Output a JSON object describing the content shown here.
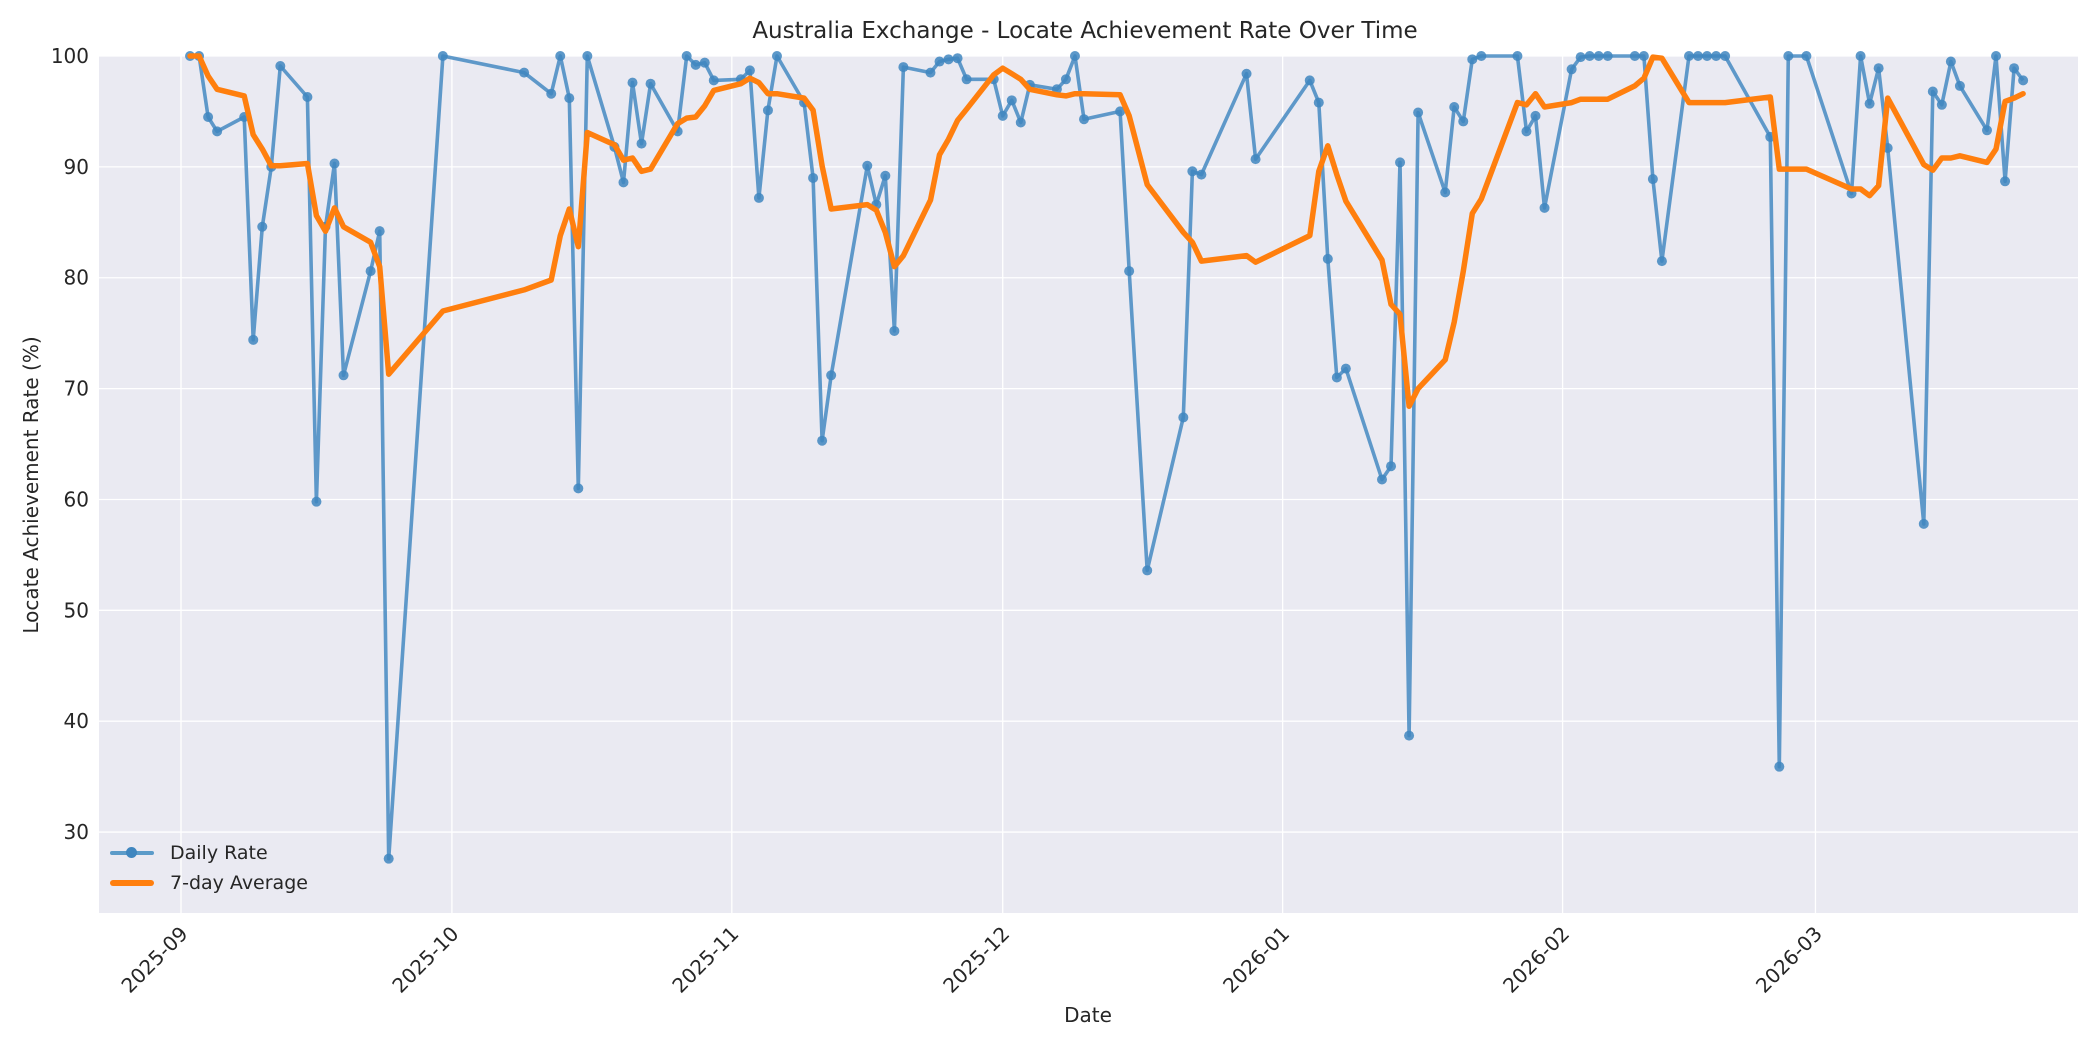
{
  "chart_data": {
    "type": "line",
    "title": "Australia Exchange - Locate Achievement Rate Over Time",
    "xlabel": "Date",
    "ylabel": "Locate Achievement Rate (%)",
    "ylim": [
      22.7,
      100
    ],
    "yticks": [
      30,
      40,
      50,
      60,
      70,
      80,
      90,
      100
    ],
    "xticks": [
      {
        "label": "2025-09",
        "day": 0
      },
      {
        "label": "2025-10",
        "day": 30
      },
      {
        "label": "2025-11",
        "day": 61
      },
      {
        "label": "2025-12",
        "day": 91
      },
      {
        "label": "2026-01",
        "day": 122
      },
      {
        "label": "2026-02",
        "day": 153
      },
      {
        "label": "2026-03",
        "day": 181
      }
    ],
    "x_origin_date": "2025-09-01",
    "xlim_days": [
      -9,
      216
    ],
    "grid": true,
    "legend_position": "lower left",
    "series": [
      {
        "name": "Daily Rate",
        "color": "#4a90c4",
        "marker": "circle",
        "points": [
          [
            1,
            100.0
          ],
          [
            2,
            100.0
          ],
          [
            3,
            94.5
          ],
          [
            4,
            93.2
          ],
          [
            7,
            94.5
          ],
          [
            8,
            74.4
          ],
          [
            9,
            84.6
          ],
          [
            10,
            90.0
          ],
          [
            11,
            99.1
          ],
          [
            14,
            96.3
          ],
          [
            15,
            59.8
          ],
          [
            16,
            84.6
          ],
          [
            17,
            90.3
          ],
          [
            18,
            71.2
          ],
          [
            21,
            80.6
          ],
          [
            22,
            84.2
          ],
          [
            23,
            27.6
          ],
          [
            29,
            100.0
          ],
          [
            38,
            98.5
          ],
          [
            41,
            96.6
          ],
          [
            42,
            100.0
          ],
          [
            43,
            96.2
          ],
          [
            44,
            61.0
          ],
          [
            45,
            100.0
          ],
          [
            48,
            91.8
          ],
          [
            49,
            88.6
          ],
          [
            50,
            97.6
          ],
          [
            51,
            92.1
          ],
          [
            52,
            97.5
          ],
          [
            55,
            93.2
          ],
          [
            56,
            100.0
          ],
          [
            57,
            99.2
          ],
          [
            58,
            99.4
          ],
          [
            59,
            97.8
          ],
          [
            62,
            97.9
          ],
          [
            63,
            98.7
          ],
          [
            64,
            87.2
          ],
          [
            65,
            95.1
          ],
          [
            66,
            100.0
          ],
          [
            69,
            95.8
          ],
          [
            70,
            89.0
          ],
          [
            71,
            65.3
          ],
          [
            72,
            71.2
          ],
          [
            76,
            90.1
          ],
          [
            77,
            86.6
          ],
          [
            78,
            89.2
          ],
          [
            79,
            75.2
          ],
          [
            80,
            99.0
          ],
          [
            83,
            98.5
          ],
          [
            84,
            99.5
          ],
          [
            85,
            99.7
          ],
          [
            86,
            99.8
          ],
          [
            87,
            97.9
          ],
          [
            90,
            97.9
          ],
          [
            91,
            94.6
          ],
          [
            92,
            96.0
          ],
          [
            93,
            94.0
          ],
          [
            94,
            97.4
          ],
          [
            97,
            97.0
          ],
          [
            98,
            97.9
          ],
          [
            99,
            100.0
          ],
          [
            100,
            94.3
          ],
          [
            104,
            95.0
          ],
          [
            105,
            80.6
          ],
          [
            107,
            53.6
          ],
          [
            111,
            67.4
          ],
          [
            112,
            89.6
          ],
          [
            113,
            89.3
          ],
          [
            118,
            98.4
          ],
          [
            119,
            90.7
          ],
          [
            125,
            97.8
          ],
          [
            126,
            95.8
          ],
          [
            127,
            81.7
          ],
          [
            128,
            71.0
          ],
          [
            129,
            71.8
          ],
          [
            133,
            61.8
          ],
          [
            134,
            63.0
          ],
          [
            135,
            90.4
          ],
          [
            136,
            38.7
          ],
          [
            137,
            94.9
          ],
          [
            140,
            87.7
          ],
          [
            141,
            95.4
          ],
          [
            142,
            94.1
          ],
          [
            143,
            99.7
          ],
          [
            144,
            100.0
          ],
          [
            148,
            100.0
          ],
          [
            149,
            93.2
          ],
          [
            150,
            94.6
          ],
          [
            151,
            86.3
          ],
          [
            154,
            98.8
          ],
          [
            155,
            99.9
          ],
          [
            156,
            100.0
          ],
          [
            157,
            100.0
          ],
          [
            158,
            100.0
          ],
          [
            161,
            100.0
          ],
          [
            162,
            100.0
          ],
          [
            163,
            88.9
          ],
          [
            164,
            81.5
          ],
          [
            167,
            100.0
          ],
          [
            168,
            100.0
          ],
          [
            169,
            100.0
          ],
          [
            170,
            100.0
          ],
          [
            171,
            100.0
          ],
          [
            176,
            92.7
          ],
          [
            177,
            35.9
          ],
          [
            178,
            100.0
          ],
          [
            180,
            100.0
          ],
          [
            185,
            87.6
          ],
          [
            186,
            100.0
          ],
          [
            187,
            95.7
          ],
          [
            188,
            98.9
          ],
          [
            189,
            91.7
          ],
          [
            193,
            57.8
          ],
          [
            194,
            96.8
          ],
          [
            195,
            95.6
          ],
          [
            196,
            99.5
          ],
          [
            197,
            97.3
          ],
          [
            200,
            93.3
          ],
          [
            201,
            100.0
          ],
          [
            202,
            88.7
          ],
          [
            203,
            98.9
          ],
          [
            204,
            97.8
          ]
        ]
      },
      {
        "name": "7-day Average",
        "color": "#ff7f0e",
        "points": [
          [
            1,
            100.0
          ],
          [
            2,
            100.0
          ],
          [
            3,
            98.2
          ],
          [
            4,
            97.0
          ],
          [
            7,
            96.4
          ],
          [
            8,
            92.9
          ],
          [
            9,
            91.6
          ],
          [
            10,
            90.1
          ],
          [
            11,
            90.1
          ],
          [
            14,
            90.3
          ],
          [
            15,
            85.6
          ],
          [
            16,
            84.2
          ],
          [
            17,
            86.3
          ],
          [
            18,
            84.6
          ],
          [
            21,
            83.2
          ],
          [
            22,
            81.0
          ],
          [
            23,
            71.3
          ],
          [
            29,
            77.0
          ],
          [
            38,
            78.9
          ],
          [
            41,
            79.8
          ],
          [
            42,
            83.8
          ],
          [
            43,
            86.2
          ],
          [
            44,
            82.8
          ],
          [
            45,
            93.1
          ],
          [
            48,
            92.0
          ],
          [
            49,
            90.6
          ],
          [
            50,
            90.8
          ],
          [
            51,
            89.6
          ],
          [
            52,
            89.8
          ],
          [
            55,
            93.9
          ],
          [
            56,
            94.4
          ],
          [
            57,
            94.5
          ],
          [
            58,
            95.5
          ],
          [
            59,
            96.9
          ],
          [
            62,
            97.5
          ],
          [
            63,
            98.0
          ],
          [
            64,
            97.6
          ],
          [
            65,
            96.6
          ],
          [
            66,
            96.6
          ],
          [
            69,
            96.2
          ],
          [
            70,
            95.1
          ],
          [
            71,
            90.1
          ],
          [
            72,
            86.2
          ],
          [
            76,
            86.6
          ],
          [
            77,
            86.1
          ],
          [
            78,
            84.1
          ],
          [
            79,
            81.0
          ],
          [
            80,
            82.0
          ],
          [
            83,
            87.0
          ],
          [
            84,
            91.1
          ],
          [
            85,
            92.5
          ],
          [
            86,
            94.2
          ],
          [
            87,
            95.2
          ],
          [
            90,
            98.3
          ],
          [
            91,
            98.9
          ],
          [
            92,
            98.4
          ],
          [
            93,
            97.9
          ],
          [
            94,
            97.0
          ],
          [
            97,
            96.5
          ],
          [
            98,
            96.4
          ],
          [
            99,
            96.6
          ],
          [
            100,
            96.6
          ],
          [
            104,
            96.5
          ],
          [
            105,
            94.6
          ],
          [
            107,
            88.4
          ],
          [
            111,
            84.1
          ],
          [
            112,
            83.2
          ],
          [
            113,
            81.5
          ],
          [
            118,
            82.0
          ],
          [
            119,
            81.4
          ],
          [
            125,
            83.8
          ],
          [
            126,
            89.6
          ],
          [
            127,
            91.9
          ],
          [
            128,
            89.3
          ],
          [
            129,
            86.9
          ],
          [
            133,
            81.6
          ],
          [
            134,
            77.6
          ],
          [
            135,
            76.7
          ],
          [
            136,
            68.4
          ],
          [
            137,
            70.0
          ],
          [
            140,
            72.6
          ],
          [
            141,
            76.0
          ],
          [
            142,
            80.6
          ],
          [
            143,
            85.8
          ],
          [
            144,
            87.1
          ],
          [
            148,
            95.8
          ],
          [
            149,
            95.6
          ],
          [
            150,
            96.6
          ],
          [
            151,
            95.4
          ],
          [
            154,
            95.8
          ],
          [
            155,
            96.1
          ],
          [
            156,
            96.1
          ],
          [
            157,
            96.1
          ],
          [
            158,
            96.1
          ],
          [
            161,
            97.3
          ],
          [
            162,
            98.0
          ],
          [
            163,
            99.9
          ],
          [
            164,
            99.8
          ],
          [
            167,
            95.8
          ],
          [
            168,
            95.8
          ],
          [
            169,
            95.8
          ],
          [
            170,
            95.8
          ],
          [
            171,
            95.8
          ],
          [
            176,
            96.3
          ],
          [
            177,
            89.8
          ],
          [
            178,
            89.8
          ],
          [
            180,
            89.8
          ],
          [
            185,
            88.0
          ],
          [
            186,
            88.0
          ],
          [
            187,
            87.4
          ],
          [
            188,
            88.3
          ],
          [
            189,
            96.2
          ],
          [
            193,
            90.2
          ],
          [
            194,
            89.7
          ],
          [
            195,
            90.8
          ],
          [
            196,
            90.8
          ],
          [
            197,
            91.0
          ],
          [
            200,
            90.4
          ],
          [
            201,
            91.6
          ],
          [
            202,
            95.9
          ],
          [
            203,
            96.2
          ],
          [
            204,
            96.6
          ]
        ]
      }
    ]
  }
}
